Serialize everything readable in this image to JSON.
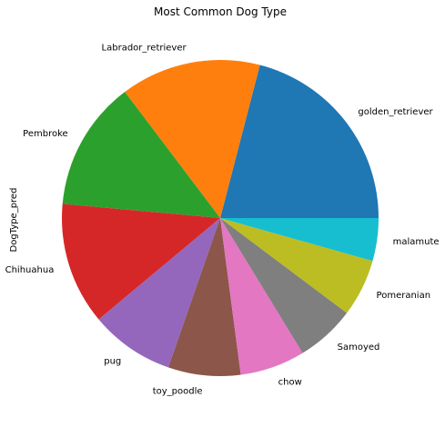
{
  "chart_data": {
    "type": "pie",
    "title": "Most Common Dog Type",
    "ylabel": "DogType_pred",
    "start_angle_deg": 0,
    "direction": "counterclockwise",
    "labels": [
      "golden_retriever",
      "Labrador_retriever",
      "Pembroke",
      "Chihuahua",
      "pug",
      "toy_poodle",
      "chow",
      "Samoyed",
      "Pomeranian",
      "malamute"
    ],
    "values": [
      139,
      95,
      88,
      83,
      57,
      49,
      44,
      40,
      39,
      29
    ],
    "colors": [
      "#1f77b4",
      "#ff7f0e",
      "#2ca02c",
      "#d62728",
      "#9467bd",
      "#8c564b",
      "#e377c2",
      "#7f7f7f",
      "#bcbd22",
      "#17becf"
    ]
  }
}
